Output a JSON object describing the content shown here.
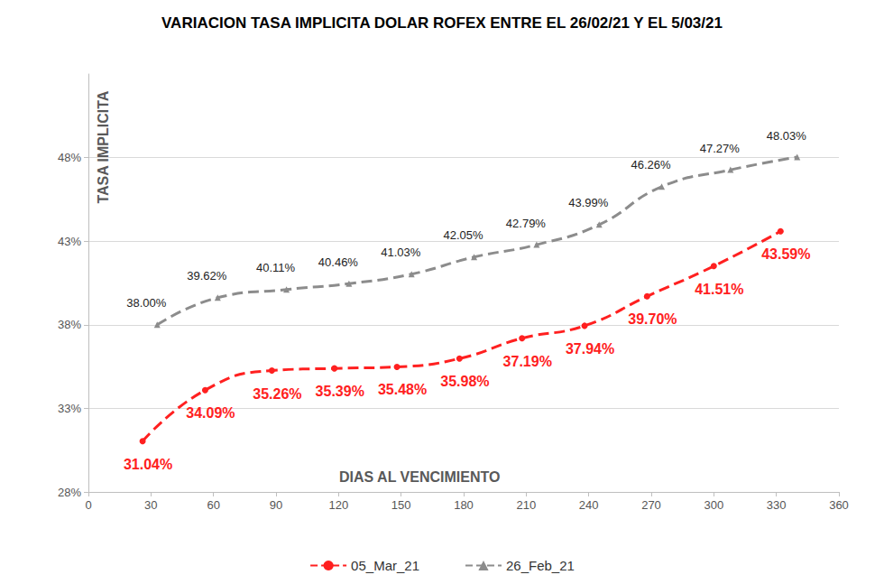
{
  "chart_data": {
    "type": "line",
    "title": "VARIACION TASA IMPLICITA DOLAR ROFEX ENTRE EL 26/02/21 Y EL 5/03/21",
    "xlabel": "DIAS AL VENCIMIENTO",
    "ylabel": "TASA IMPLICITA",
    "xlim": [
      0,
      360
    ],
    "xticks": [
      0,
      30,
      60,
      90,
      120,
      150,
      180,
      210,
      240,
      270,
      300,
      330,
      360
    ],
    "ylim": [
      28,
      53
    ],
    "yticks": [
      {
        "value": 28,
        "label": "28%"
      },
      {
        "value": 33,
        "label": "33%"
      },
      {
        "value": 38,
        "label": "38%"
      },
      {
        "value": 43,
        "label": "43%"
      },
      {
        "value": 48,
        "label": "48%"
      }
    ],
    "grid": true,
    "legend": "bottom",
    "data_labels": true,
    "series": [
      {
        "name": "05_Mar_21",
        "color": "#ff2020",
        "marker": "circle",
        "line_style": "dashed",
        "x": [
          26,
          56,
          88,
          118,
          148,
          178,
          208,
          238,
          268,
          300,
          332
        ],
        "values": [
          31.04,
          34.09,
          35.26,
          35.39,
          35.48,
          35.98,
          37.19,
          37.94,
          39.7,
          41.51,
          43.59
        ],
        "value_labels": [
          "31.04%",
          "34.09%",
          "35.26%",
          "35.39%",
          "35.48%",
          "35.98%",
          "37.19%",
          "37.94%",
          "39.70%",
          "41.51%",
          "43.59%"
        ]
      },
      {
        "name": "26_Feb_21",
        "color": "#8c8c8c",
        "marker": "triangle",
        "line_style": "dashed",
        "x": [
          33,
          62,
          95,
          125,
          155,
          185,
          215,
          245,
          275,
          308,
          340
        ],
        "values": [
          38.0,
          39.62,
          40.11,
          40.46,
          41.03,
          42.05,
          42.79,
          43.99,
          46.26,
          47.27,
          48.03
        ],
        "value_labels": [
          "38.00%",
          "39.62%",
          "40.11%",
          "40.46%",
          "41.03%",
          "42.05%",
          "42.79%",
          "43.99%",
          "46.26%",
          "47.27%",
          "48.03%"
        ]
      }
    ]
  }
}
